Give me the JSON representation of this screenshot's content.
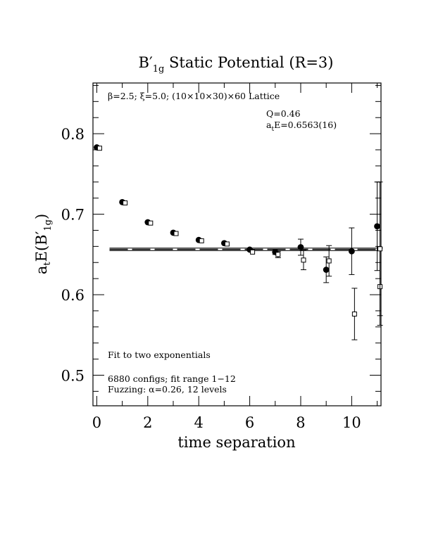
{
  "chart_data": {
    "type": "scatter",
    "title": {
      "main": "B",
      "prime": "′",
      "sub": "1g",
      "rest": " Static Potential (R=3)"
    },
    "xlabel": "time separation",
    "ylabel": {
      "main": "a",
      "sub_t": "t",
      "mid": "E(B",
      "prime": "′",
      "sub": "1g",
      "end": ")"
    },
    "xlim": [
      -0.15,
      11.15
    ],
    "ylim": [
      0.462,
      0.863
    ],
    "xticks": [
      0,
      2,
      4,
      6,
      8,
      10
    ],
    "xtick_labels": [
      "0",
      "2",
      "4",
      "6",
      "8",
      "10"
    ],
    "yticks": [
      0.5,
      0.6,
      0.7,
      0.8
    ],
    "ytick_labels": [
      "0.5",
      "0.6",
      "0.7",
      "0.8"
    ],
    "grid": false,
    "annotations": {
      "lattice": "β=2.5; ξ=5.0; (10×10×30)×60 Lattice",
      "q": "Q=0.46",
      "ate": "a",
      "ate_sub": "t",
      "ate_rest": "E=0.6563(16)",
      "fit": "Fit to two exponentials",
      "configs": "6880 configs; fit range 1−12",
      "fuzzing": "Fuzzing: α=0.26, 12 levels"
    },
    "fit": {
      "center": 0.6563,
      "upper": 0.6579,
      "lower": 0.6547,
      "x_range": [
        0.5,
        11.15
      ]
    },
    "series": [
      {
        "marker": "filled-circle",
        "points": [
          {
            "x": 0,
            "y": 0.783,
            "err": 0.0
          },
          {
            "x": 1,
            "y": 0.715,
            "err": 0.0
          },
          {
            "x": 2,
            "y": 0.69,
            "err": 0.0
          },
          {
            "x": 3,
            "y": 0.677,
            "err": 0.0
          },
          {
            "x": 4,
            "y": 0.668,
            "err": 0.0
          },
          {
            "x": 5,
            "y": 0.664,
            "err": 0.0
          },
          {
            "x": 6,
            "y": 0.656,
            "err": 0.0
          },
          {
            "x": 7,
            "y": 0.653,
            "err": 0.003
          },
          {
            "x": 8,
            "y": 0.659,
            "err": 0.01
          },
          {
            "x": 9,
            "y": 0.631,
            "err": 0.016
          },
          {
            "x": 10,
            "y": 0.654,
            "err": 0.029
          },
          {
            "x": 11,
            "y": 0.685,
            "err": 0.055
          }
        ]
      },
      {
        "marker": "open-square",
        "points": [
          {
            "x": 0,
            "y": 0.782,
            "err": 0.0
          },
          {
            "x": 1,
            "y": 0.714,
            "err": 0.0
          },
          {
            "x": 2,
            "y": 0.689,
            "err": 0.0
          },
          {
            "x": 3,
            "y": 0.676,
            "err": 0.0
          },
          {
            "x": 4,
            "y": 0.667,
            "err": 0.0
          },
          {
            "x": 5,
            "y": 0.663,
            "err": 0.0
          },
          {
            "x": 6,
            "y": 0.653,
            "err": 0.0
          },
          {
            "x": 7,
            "y": 0.65,
            "err": 0.004
          },
          {
            "x": 8,
            "y": 0.643,
            "err": 0.012
          },
          {
            "x": 9,
            "y": 0.642,
            "err": 0.019
          },
          {
            "x": 10,
            "y": 0.576,
            "err": 0.032
          },
          {
            "x": 11,
            "y": 0.61,
            "err": 0.048
          },
          {
            "x": 11,
            "y": 0.657,
            "err": 0.083
          }
        ]
      }
    ]
  }
}
